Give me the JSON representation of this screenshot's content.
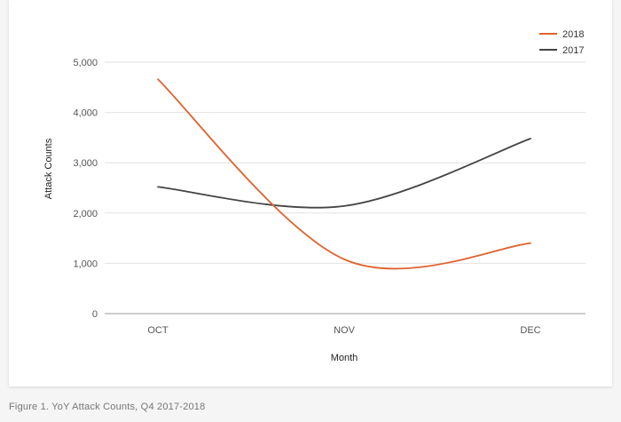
{
  "chart_data": {
    "type": "line",
    "categories": [
      "OCT",
      "NOV",
      "DEC"
    ],
    "series": [
      {
        "name": "2018",
        "values": [
          4660,
          1080,
          1400
        ],
        "color": "#e0622e"
      },
      {
        "name": "2017",
        "values": [
          2520,
          2140,
          3480
        ],
        "color": "#444444"
      }
    ],
    "xlabel": "Month",
    "ylabel": "Attack Counts",
    "ylim": [
      0,
      5000
    ],
    "yticks": [
      "0",
      "1,000",
      "2,000",
      "3,000",
      "4,000",
      "5,000"
    ],
    "grid": true,
    "legend": "top-right"
  },
  "caption": "Figure 1. YoY Attack Counts, Q4 2017-2018"
}
